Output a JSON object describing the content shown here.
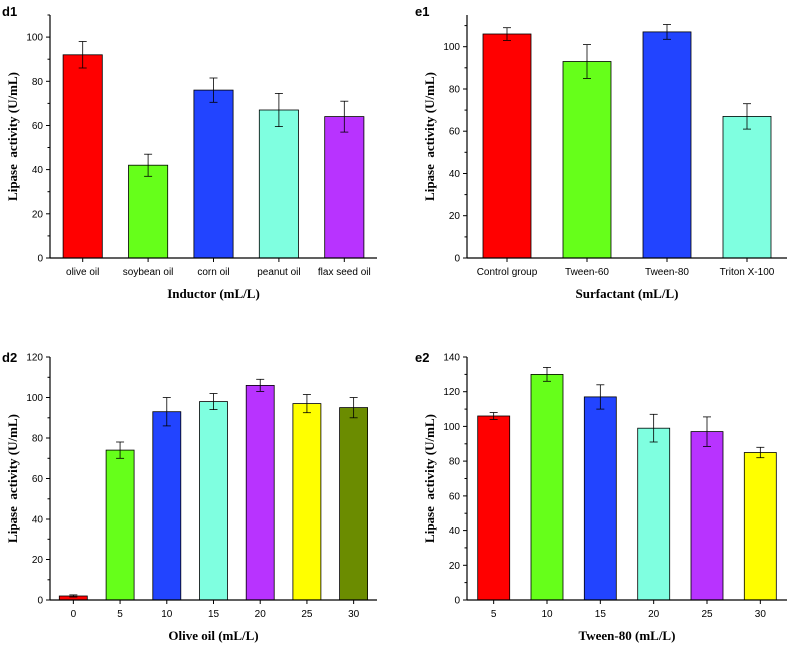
{
  "chart_data": [
    {
      "id": "d1",
      "type": "bar",
      "panel_label": "d1",
      "categories": [
        "olive oil",
        "soybean oil",
        "corn oil",
        "peanut oil",
        "flax seed oil"
      ],
      "values": [
        92,
        42,
        76,
        67,
        64
      ],
      "errors": [
        6,
        5,
        5.5,
        7.5,
        7
      ],
      "colors": [
        "#ff0000",
        "#66ff1a",
        "#2244ff",
        "#7fffe0",
        "#b833ff"
      ],
      "xlabel": "Inductor (mL/L)",
      "ylabel": "Lipase  activity (U/mL)",
      "ylim": [
        0,
        110
      ],
      "yticks": [
        0,
        20,
        40,
        60,
        80,
        100
      ],
      "grid": false
    },
    {
      "id": "e1",
      "type": "bar",
      "panel_label": "e1",
      "categories": [
        "Control group",
        "Tween-60",
        "Tween-80",
        "Triton X-100"
      ],
      "values": [
        106,
        93,
        107,
        67
      ],
      "errors": [
        3,
        8,
        3.5,
        6
      ],
      "colors": [
        "#ff0000",
        "#66ff1a",
        "#2244ff",
        "#7fffe0"
      ],
      "xlabel": "Surfactant (mL/L)",
      "ylabel": "Lipase  activity (U/mL)",
      "ylim": [
        0,
        115
      ],
      "yticks": [
        0,
        20,
        40,
        60,
        80,
        100
      ],
      "grid": false
    },
    {
      "id": "d2",
      "type": "bar",
      "panel_label": "d2",
      "categories": [
        "0",
        "5",
        "10",
        "15",
        "20",
        "25",
        "30"
      ],
      "values": [
        2,
        74,
        93,
        98,
        106,
        97,
        95
      ],
      "errors": [
        0.5,
        4,
        7,
        4,
        3,
        4.5,
        5
      ],
      "colors": [
        "#ff0000",
        "#66ff1a",
        "#2244ff",
        "#7fffe0",
        "#b833ff",
        "#ffff00",
        "#6b8c00"
      ],
      "xlabel": "Olive oil (mL/L)",
      "ylabel": "Lipase  activity (U/mL)",
      "ylim": [
        0,
        120
      ],
      "yticks": [
        0,
        20,
        40,
        60,
        80,
        100,
        120
      ],
      "grid": false
    },
    {
      "id": "e2",
      "type": "bar",
      "panel_label": "e2",
      "categories": [
        "5",
        "10",
        "15",
        "20",
        "25",
        "30"
      ],
      "values": [
        106,
        130,
        117,
        99,
        97,
        85
      ],
      "errors": [
        2,
        4,
        7,
        8,
        8.5,
        3
      ],
      "colors": [
        "#ff0000",
        "#66ff1a",
        "#2244ff",
        "#7fffe0",
        "#b833ff",
        "#ffff00"
      ],
      "xlabel": "Tween-80 (mL/L)",
      "ylabel": "Lipase  activity (U/mL)",
      "ylim": [
        0,
        140
      ],
      "yticks": [
        0,
        20,
        40,
        60,
        80,
        100,
        120,
        140
      ],
      "grid": false
    }
  ]
}
